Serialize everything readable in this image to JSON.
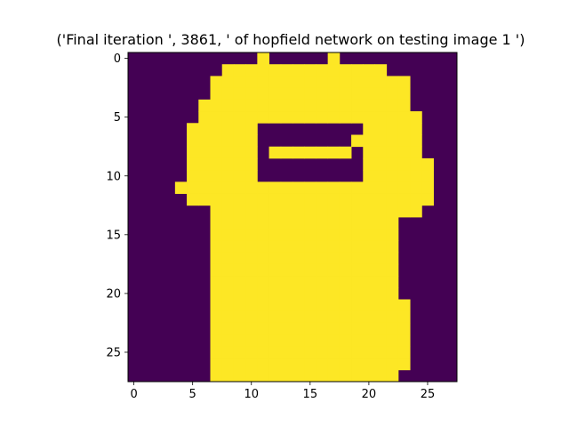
{
  "chart_data": {
    "type": "heatmap",
    "title": "('Final iteration ', 3861, ' of hopfield network on testing image 1 ')",
    "xlabel": "",
    "ylabel": "",
    "shape": [
      28,
      28
    ],
    "value_range": [
      0,
      1
    ],
    "colormap": "viridis",
    "colors": {
      "low": "#440154",
      "high": "#fde725"
    },
    "x_ticks": [
      0,
      5,
      10,
      15,
      20,
      25
    ],
    "y_ticks": [
      0,
      5,
      10,
      15,
      20,
      25
    ],
    "grid": false,
    "legend": "none",
    "rows": [
      "0000000000010000010000000000",
      "0000000011111111111111000000",
      "0000000111111111111111110000",
      "0000000111111111111111110000",
      "0000001111111111111111110000",
      "0000001111111111111111111000",
      "0000011111100000000011111000",
      "0000011111100000000111111000",
      "0000011111101111111011111000",
      "0000011111100000000011111100",
      "0000011111100000000011111100",
      "0000111111111111111111111100",
      "0000011111111111111111111100",
      "0000000111111111111111111000",
      "0000000111111111111111100000",
      "0000000111111111111111100000",
      "0000000111111111111111100000",
      "0000000111111111111111100000",
      "0000000111111111111111100000",
      "0000000111111111111111100000",
      "0000000111111111111111100000",
      "0000000111111111111111110000",
      "0000000111111111111111110000",
      "0000000111111111111111110000",
      "0000000111111111111111110000",
      "0000000111111111111111110000",
      "0000000111111111111111110000",
      "0000000111111111111111100000"
    ]
  }
}
